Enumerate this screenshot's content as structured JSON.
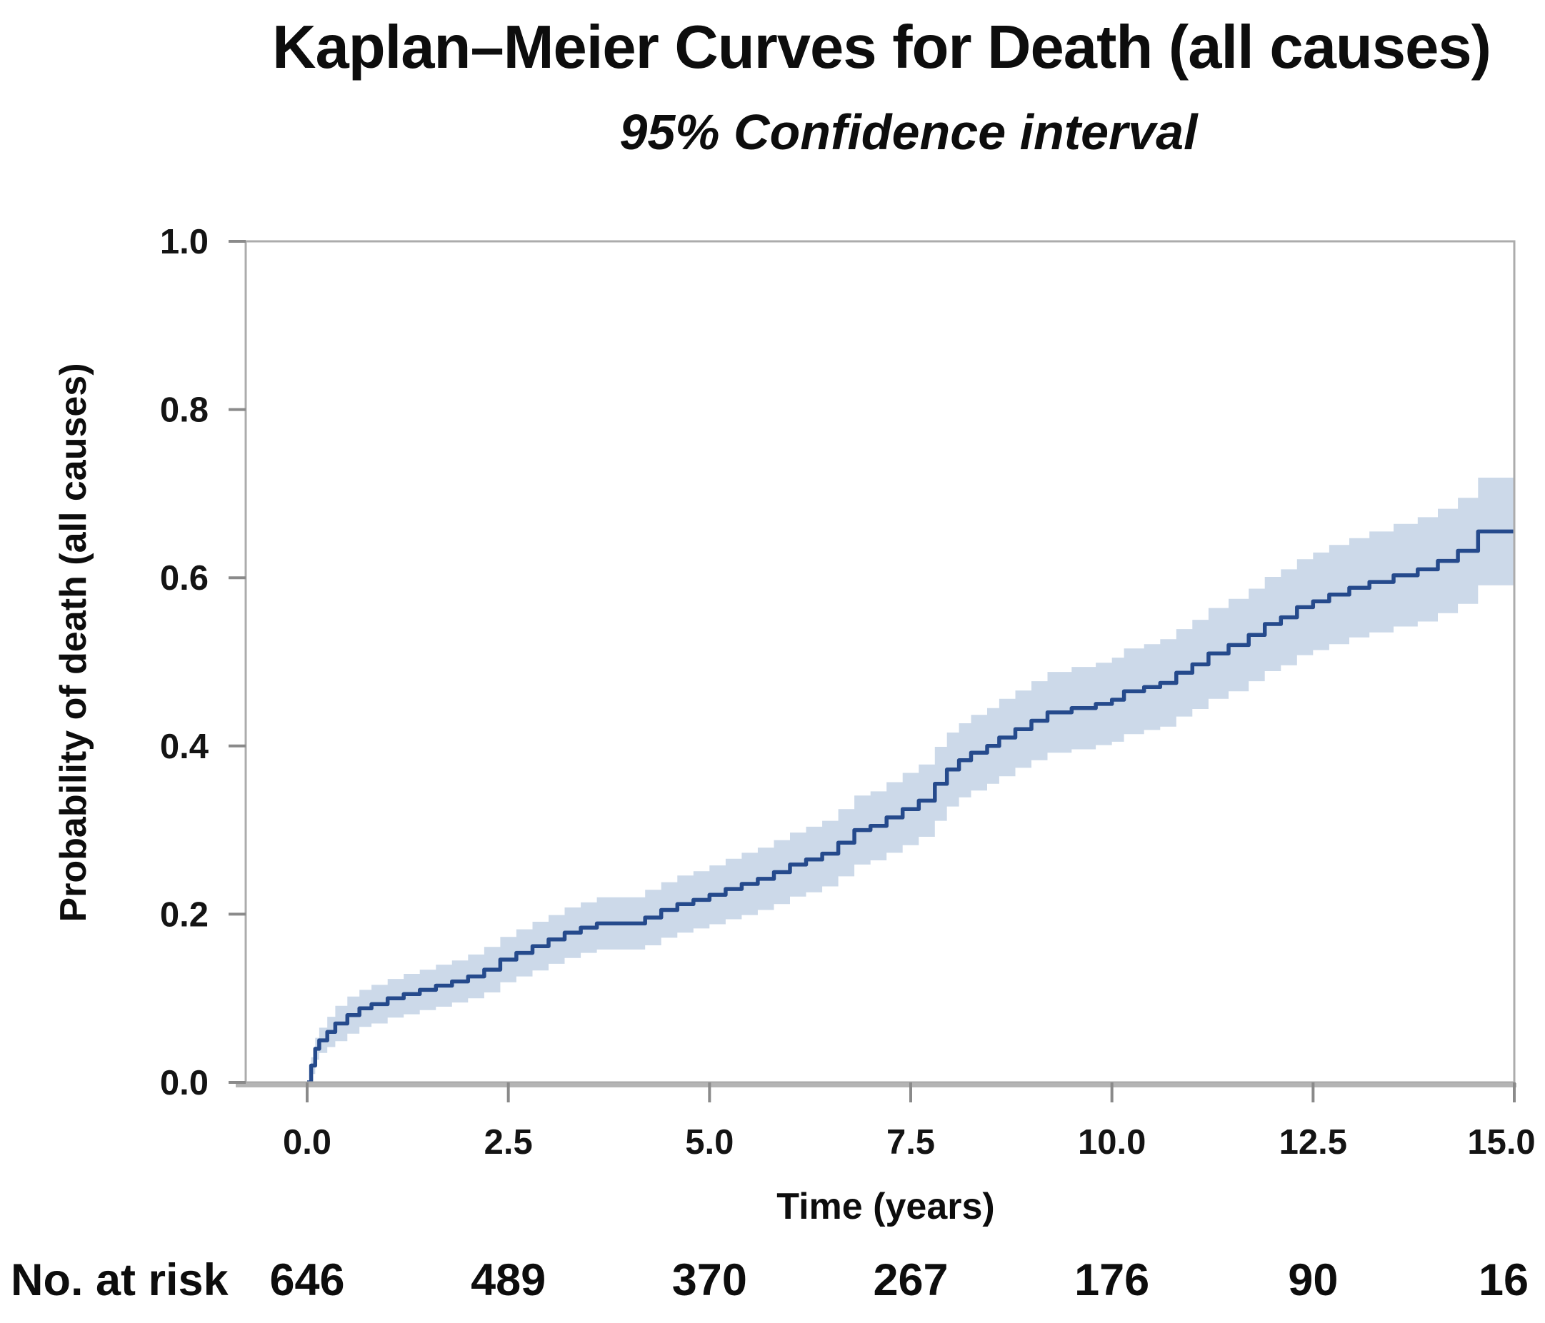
{
  "chart_data": {
    "type": "line",
    "variant": "kaplan_meier_step_with_ci_band",
    "title": "Kaplan–Meier Curves for Death (all causes)",
    "subtitle": "95% Confidence interval",
    "xlabel": "Time (years)",
    "ylabel": "Probability of death (all causes)",
    "xlim": [
      0,
      15
    ],
    "ylim": [
      0,
      1
    ],
    "grid": false,
    "legend": "none",
    "xticks": {
      "values": [
        0,
        2.5,
        5,
        7.5,
        10,
        12.5,
        15
      ],
      "labels": [
        "0.0",
        "2.5",
        "5.0",
        "7.5",
        "10.0",
        "12.5",
        "15.0"
      ]
    },
    "yticks": {
      "values": [
        0,
        0.2,
        0.4,
        0.6,
        0.8,
        1.0
      ],
      "labels": [
        "0.0",
        "0.2",
        "0.4",
        "0.6",
        "0.8",
        "1.0"
      ]
    },
    "colors": {
      "line": "#254a8c",
      "ci_fill": "#ccd9e9",
      "frame": "#acacac",
      "axis": "#b4b4b4",
      "tick": "#8a8a8a",
      "text": "#141414"
    },
    "series": [
      {
        "name": "Death (all causes)",
        "points_format": [
          "time_years",
          "estimate",
          "ci_lower",
          "ci_upper"
        ],
        "points": [
          [
            0.0,
            0.0,
            0.0,
            0.0
          ],
          [
            0.05,
            0.02,
            0.01,
            0.03
          ],
          [
            0.1,
            0.04,
            0.027,
            0.053
          ],
          [
            0.15,
            0.05,
            0.035,
            0.065
          ],
          [
            0.25,
            0.06,
            0.042,
            0.078
          ],
          [
            0.35,
            0.07,
            0.049,
            0.091
          ],
          [
            0.5,
            0.08,
            0.058,
            0.102
          ],
          [
            0.65,
            0.088,
            0.066,
            0.11
          ],
          [
            0.8,
            0.093,
            0.07,
            0.116
          ],
          [
            1.0,
            0.1,
            0.077,
            0.123
          ],
          [
            1.2,
            0.105,
            0.081,
            0.129
          ],
          [
            1.4,
            0.11,
            0.086,
            0.134
          ],
          [
            1.6,
            0.115,
            0.09,
            0.14
          ],
          [
            1.8,
            0.12,
            0.095,
            0.145
          ],
          [
            2.0,
            0.126,
            0.1,
            0.152
          ],
          [
            2.2,
            0.134,
            0.107,
            0.161
          ],
          [
            2.4,
            0.146,
            0.119,
            0.173
          ],
          [
            2.6,
            0.154,
            0.126,
            0.182
          ],
          [
            2.8,
            0.162,
            0.133,
            0.191
          ],
          [
            3.0,
            0.17,
            0.141,
            0.199
          ],
          [
            3.2,
            0.178,
            0.148,
            0.208
          ],
          [
            3.4,
            0.184,
            0.154,
            0.214
          ],
          [
            3.6,
            0.189,
            0.158,
            0.22
          ],
          [
            4.2,
            0.196,
            0.163,
            0.229
          ],
          [
            4.4,
            0.205,
            0.172,
            0.238
          ],
          [
            4.6,
            0.212,
            0.178,
            0.246
          ],
          [
            4.8,
            0.217,
            0.183,
            0.251
          ],
          [
            5.0,
            0.223,
            0.188,
            0.258
          ],
          [
            5.2,
            0.23,
            0.194,
            0.266
          ],
          [
            5.4,
            0.236,
            0.199,
            0.273
          ],
          [
            5.6,
            0.242,
            0.205,
            0.279
          ],
          [
            5.8,
            0.25,
            0.212,
            0.288
          ],
          [
            6.0,
            0.259,
            0.221,
            0.297
          ],
          [
            6.2,
            0.265,
            0.226,
            0.304
          ],
          [
            6.4,
            0.272,
            0.233,
            0.311
          ],
          [
            6.6,
            0.285,
            0.245,
            0.325
          ],
          [
            6.8,
            0.3,
            0.259,
            0.341
          ],
          [
            7.0,
            0.305,
            0.264,
            0.346
          ],
          [
            7.2,
            0.315,
            0.273,
            0.357
          ],
          [
            7.4,
            0.325,
            0.282,
            0.368
          ],
          [
            7.6,
            0.335,
            0.292,
            0.378
          ],
          [
            7.8,
            0.355,
            0.311,
            0.399
          ],
          [
            7.95,
            0.372,
            0.328,
            0.416
          ],
          [
            8.1,
            0.383,
            0.339,
            0.427
          ],
          [
            8.25,
            0.392,
            0.347,
            0.437
          ],
          [
            8.45,
            0.4,
            0.355,
            0.445
          ],
          [
            8.6,
            0.41,
            0.364,
            0.456
          ],
          [
            8.8,
            0.42,
            0.374,
            0.466
          ],
          [
            9.0,
            0.43,
            0.383,
            0.477
          ],
          [
            9.2,
            0.44,
            0.392,
            0.488
          ],
          [
            9.5,
            0.445,
            0.396,
            0.494
          ],
          [
            9.8,
            0.45,
            0.401,
            0.499
          ],
          [
            10.0,
            0.455,
            0.405,
            0.505
          ],
          [
            10.15,
            0.465,
            0.414,
            0.516
          ],
          [
            10.4,
            0.47,
            0.419,
            0.521
          ],
          [
            10.6,
            0.475,
            0.423,
            0.527
          ],
          [
            10.8,
            0.487,
            0.435,
            0.539
          ],
          [
            11.0,
            0.497,
            0.444,
            0.55
          ],
          [
            11.2,
            0.51,
            0.456,
            0.564
          ],
          [
            11.45,
            0.52,
            0.465,
            0.575
          ],
          [
            11.7,
            0.532,
            0.477,
            0.587
          ],
          [
            11.9,
            0.545,
            0.489,
            0.601
          ],
          [
            12.1,
            0.553,
            0.496,
            0.61
          ],
          [
            12.3,
            0.565,
            0.508,
            0.622
          ],
          [
            12.5,
            0.572,
            0.514,
            0.63
          ],
          [
            12.7,
            0.58,
            0.521,
            0.639
          ],
          [
            12.95,
            0.588,
            0.529,
            0.647
          ],
          [
            13.2,
            0.595,
            0.535,
            0.655
          ],
          [
            13.5,
            0.603,
            0.542,
            0.664
          ],
          [
            13.8,
            0.61,
            0.548,
            0.672
          ],
          [
            14.05,
            0.62,
            0.558,
            0.682
          ],
          [
            14.3,
            0.632,
            0.569,
            0.695
          ],
          [
            14.55,
            0.655,
            0.591,
            0.719
          ],
          [
            15.0,
            0.655,
            0.588,
            0.722
          ]
        ]
      }
    ],
    "at_risk": {
      "label": "No. at risk",
      "times": [
        0,
        2.5,
        5,
        7.5,
        10,
        12.5,
        15
      ],
      "counts": [
        646,
        489,
        370,
        267,
        176,
        90,
        16
      ]
    }
  }
}
